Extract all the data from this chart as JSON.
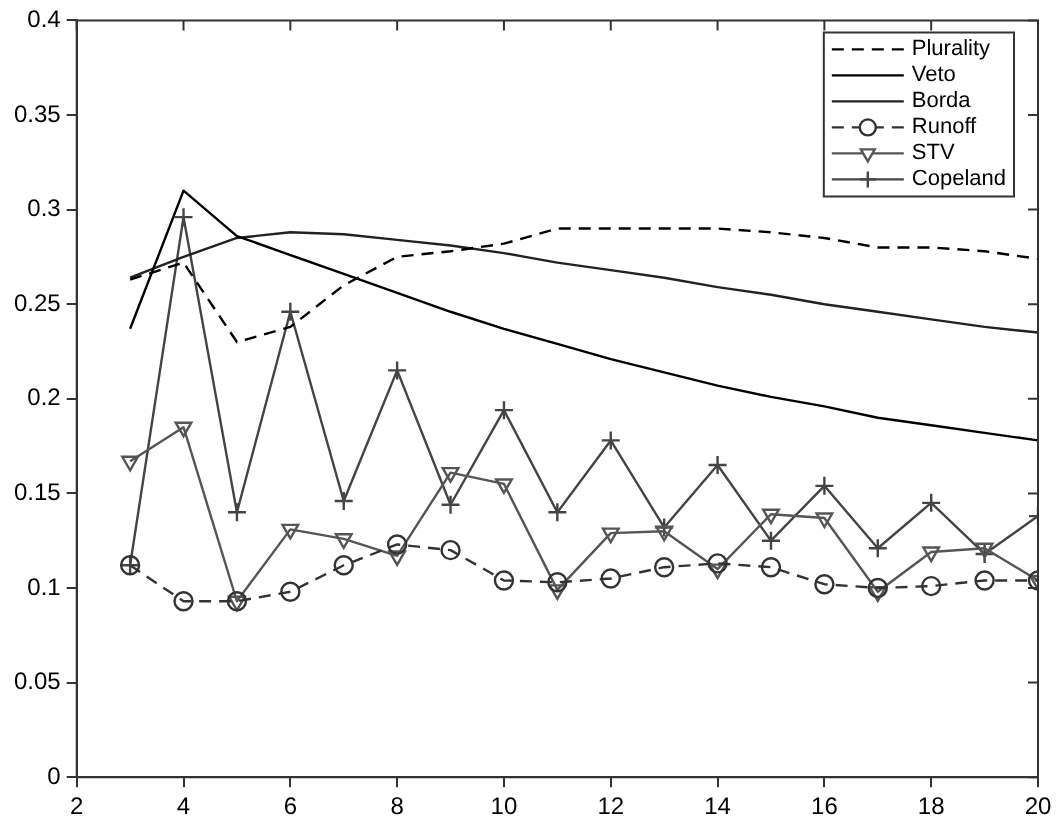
{
  "chart_data": {
    "type": "line",
    "x": [
      3,
      4,
      5,
      6,
      7,
      8,
      9,
      10,
      11,
      12,
      13,
      14,
      15,
      16,
      17,
      18,
      19,
      20
    ],
    "xlim": [
      2,
      20
    ],
    "xticks": [
      2,
      4,
      6,
      8,
      10,
      12,
      14,
      16,
      18,
      20
    ],
    "ylim": [
      0,
      0.4
    ],
    "yticks": [
      0,
      0.05,
      0.1,
      0.15,
      0.2,
      0.25,
      0.3,
      0.35,
      0.4
    ],
    "grid": false,
    "legend": "top right",
    "series": [
      {
        "name": "Plurality",
        "color": "#000000",
        "line_style": "dashed",
        "marker": "none",
        "values": [
          0.263,
          0.272,
          0.23,
          0.238,
          0.26,
          0.275,
          0.278,
          0.282,
          0.29,
          0.29,
          0.29,
          0.29,
          0.288,
          0.285,
          0.28,
          0.28,
          0.278,
          0.274
        ]
      },
      {
        "name": "Veto",
        "color": "#000000",
        "line_style": "solid",
        "marker": "none",
        "values": [
          0.237,
          0.31,
          0.286,
          0.276,
          0.266,
          0.256,
          0.246,
          0.237,
          0.229,
          0.221,
          0.214,
          0.207,
          0.201,
          0.196,
          0.19,
          0.186,
          0.182,
          0.178
        ]
      },
      {
        "name": "Borda",
        "color": "#222222",
        "line_style": "solid",
        "marker": "none",
        "values": [
          0.264,
          0.275,
          0.285,
          0.288,
          0.287,
          0.284,
          0.281,
          0.277,
          0.272,
          0.268,
          0.264,
          0.259,
          0.255,
          0.25,
          0.246,
          0.242,
          0.238,
          0.235
        ]
      },
      {
        "name": "Runoff",
        "color": "#333333",
        "line_style": "dashed",
        "marker": "circle",
        "values": [
          0.112,
          0.093,
          0.093,
          0.098,
          0.112,
          0.123,
          0.12,
          0.104,
          0.103,
          0.105,
          0.111,
          0.113,
          0.111,
          0.102,
          0.1,
          0.101,
          0.104,
          0.104
        ]
      },
      {
        "name": "STV",
        "color": "#555555",
        "line_style": "solid",
        "marker": "triangle",
        "values": [
          0.167,
          0.185,
          0.093,
          0.131,
          0.126,
          0.117,
          0.161,
          0.155,
          0.099,
          0.129,
          0.13,
          0.11,
          0.139,
          0.137,
          0.098,
          0.119,
          0.121,
          0.104
        ]
      },
      {
        "name": "Copeland",
        "color": "#444444",
        "line_style": "solid",
        "marker": "cross",
        "values": [
          0.112,
          0.296,
          0.14,
          0.246,
          0.146,
          0.215,
          0.144,
          0.194,
          0.14,
          0.178,
          0.132,
          0.165,
          0.125,
          0.154,
          0.121,
          0.145,
          0.118,
          0.138
        ]
      }
    ]
  }
}
